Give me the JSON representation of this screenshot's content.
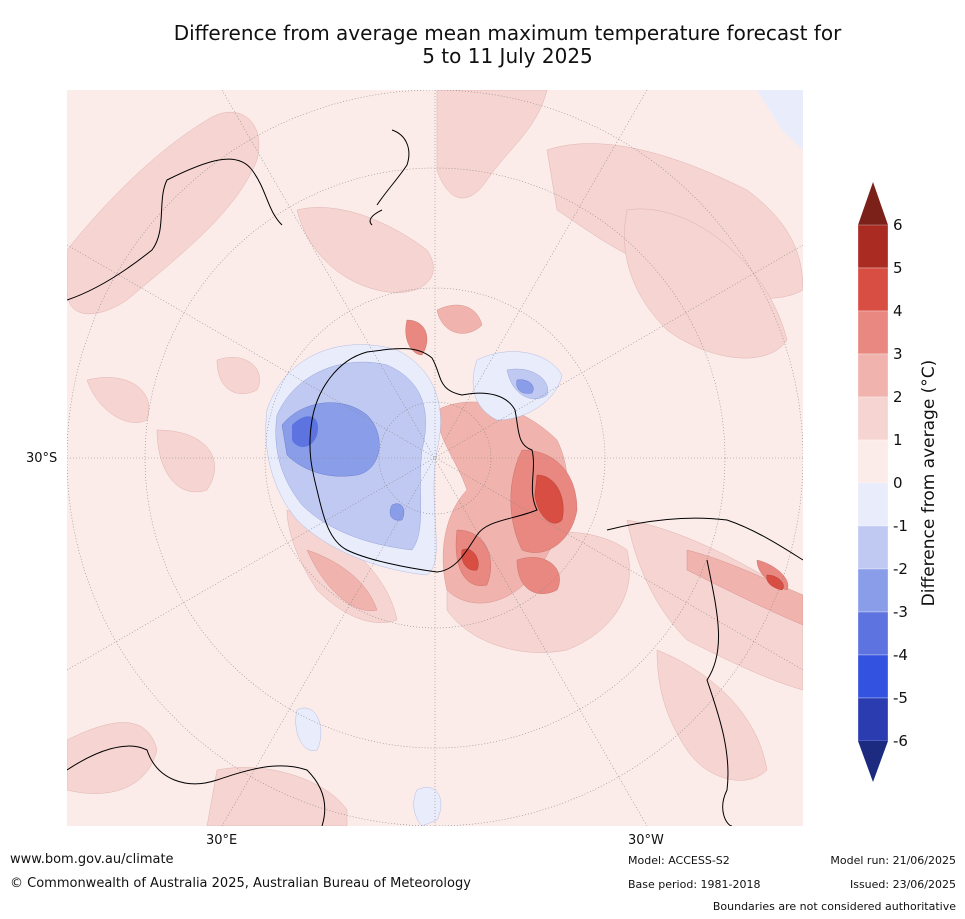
{
  "title": {
    "line1": "Difference from average mean maximum temperature forecast for",
    "line2": "5 to 11 July 2025"
  },
  "axis_labels": {
    "lat_30s": "30°S",
    "lon_30e": "30°E",
    "lon_30w": "30°W"
  },
  "colorbar": {
    "title": "Difference from average (°C)",
    "ticks": [
      "6",
      "5",
      "4",
      "3",
      "2",
      "1",
      "0",
      "-1",
      "-2",
      "-3",
      "-4",
      "-5",
      "-6"
    ],
    "colors": {
      "above_6": "#7b2119",
      "5_to_6": "#a92b22",
      "4_to_5": "#d94e43",
      "3_to_4": "#e88880",
      "2_to_3": "#f0b3ad",
      "1_to_2": "#f5d4d1",
      "0_to_1": "#fbecea",
      "m1_to_0": "#e8ecfb",
      "m2_to_m1": "#c0c9f2",
      "m3_to_m2": "#8a9de9",
      "m4_to_m3": "#5c73e0",
      "m5_to_m4": "#3352e0",
      "m6_to_m5": "#2a3cb0",
      "below_m6": "#1c2a80"
    }
  },
  "footer": {
    "website": "www.bom.gov.au/climate",
    "copyright": "© Commonwealth of Australia 2025, Australian Bureau of Meteorology",
    "model": "Model: ACCESS-S2",
    "base_period": "Base period: 1981-2018",
    "model_run": "Model run: 21/06/2025",
    "issued": "Issued: 23/06/2025",
    "disclaimer": "Boundaries are not considered authoritative"
  }
}
